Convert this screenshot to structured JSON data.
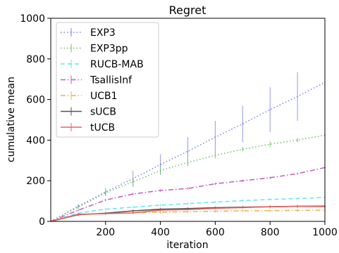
{
  "chart_data": {
    "type": "line",
    "title": "Regret",
    "xlabel": "iteration",
    "ylabel": "cumulative mean",
    "xlim": [
      0,
      1000
    ],
    "ylim": [
      0,
      1000
    ],
    "xticks": [
      200,
      400,
      600,
      800,
      1000
    ],
    "yticks": [
      0,
      200,
      400,
      600,
      800,
      1000
    ],
    "grid": false,
    "legend_position": "top-left",
    "series": [
      {
        "name": "EXP3",
        "color": "#7b7bf0",
        "dash": "dotted",
        "x": [
          0,
          100,
          200,
          300,
          400,
          500,
          600,
          700,
          800,
          900,
          1000
        ],
        "y": [
          0,
          75,
          145,
          210,
          280,
          345,
          415,
          480,
          550,
          615,
          685
        ],
        "err": [
          0,
          10,
          20,
          40,
          50,
          70,
          80,
          90,
          110,
          120,
          0
        ]
      },
      {
        "name": "EXP3pp",
        "color": "#6cbf6c",
        "dash": "dotted",
        "x": [
          0,
          100,
          200,
          300,
          400,
          500,
          600,
          700,
          800,
          900,
          1000
        ],
        "y": [
          0,
          70,
          140,
          195,
          250,
          290,
          325,
          355,
          380,
          400,
          425
        ],
        "err": [
          0,
          8,
          12,
          20,
          22,
          18,
          15,
          12,
          15,
          12,
          0
        ]
      },
      {
        "name": "RUCB-MAB",
        "color": "#5ee8ec",
        "dash": "dashed",
        "x": [
          0,
          100,
          200,
          300,
          400,
          500,
          600,
          700,
          800,
          900,
          1000
        ],
        "y": [
          0,
          40,
          60,
          70,
          80,
          88,
          95,
          102,
          108,
          112,
          118
        ],
        "err": [
          0,
          3,
          4,
          4,
          5,
          5,
          5,
          5,
          5,
          5,
          0
        ]
      },
      {
        "name": "TsallisInf",
        "color": "#c05ac0",
        "dash": "dashdot",
        "x": [
          0,
          100,
          200,
          300,
          400,
          500,
          600,
          700,
          800,
          900,
          1000
        ],
        "y": [
          0,
          55,
          105,
          135,
          152,
          162,
          185,
          200,
          215,
          235,
          265
        ],
        "err": [
          0,
          4,
          6,
          6,
          6,
          6,
          6,
          6,
          6,
          6,
          0
        ]
      },
      {
        "name": "UCB1",
        "color": "#f0b04a",
        "dash": "dashdot",
        "x": [
          0,
          100,
          200,
          300,
          400,
          500,
          600,
          700,
          800,
          900,
          1000
        ],
        "y": [
          0,
          35,
          38,
          42,
          45,
          48,
          50,
          52,
          53,
          54,
          55
        ],
        "err": [
          0,
          6,
          6,
          7,
          7,
          7,
          7,
          7,
          7,
          7,
          0
        ]
      },
      {
        "name": "sUCB",
        "color": "#555555",
        "dash": "solid",
        "x": [
          0,
          100,
          200,
          300,
          400,
          500,
          600,
          700,
          800,
          900,
          1000
        ],
        "y": [
          0,
          33,
          40,
          52,
          60,
          63,
          67,
          70,
          72,
          74,
          75
        ],
        "err": [
          0,
          6,
          7,
          7,
          7,
          7,
          7,
          7,
          7,
          7,
          0
        ]
      },
      {
        "name": "tUCB",
        "color": "#f06060",
        "dash": "solid",
        "x": [
          0,
          100,
          200,
          300,
          400,
          500,
          600,
          700,
          800,
          900,
          1000
        ],
        "y": [
          0,
          35,
          38,
          42,
          55,
          58,
          64,
          68,
          72,
          74,
          73
        ],
        "err": [
          0,
          4,
          4,
          4,
          4,
          4,
          4,
          4,
          4,
          4,
          0
        ]
      }
    ]
  }
}
